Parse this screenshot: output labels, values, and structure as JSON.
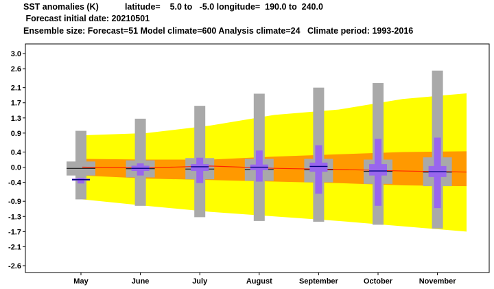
{
  "header": {
    "line1": "SST anomalies (K)           latitude=    5.0 to   -5.0 longitude=  190.0 to  240.0",
    "line2": " Forecast initial date: 20210501",
    "line3": "Ensemble size: Forecast=51 Model climate=600 Analysis climate=24   Climate period: 1993-2016"
  },
  "chart_data": {
    "type": "box",
    "title": "SST anomalies (K)",
    "categories": [
      "May",
      "June",
      "July",
      "August",
      "September",
      "October",
      "November"
    ],
    "y_ticks": [
      "3.0",
      "2.6",
      "2.1",
      "1.7",
      "1.3",
      "0.9",
      "0.4",
      "0.0",
      "-0.4",
      "-0.9",
      "-1.3",
      "-1.7",
      "-2.1",
      "-2.6"
    ],
    "ylim": [
      -2.6,
      3.0
    ],
    "climate_outer": {
      "upper": [
        0.84,
        0.9,
        1.1,
        1.38,
        1.52,
        1.8,
        1.95
      ],
      "lower": [
        -0.85,
        -1.02,
        -1.18,
        -1.3,
        -1.42,
        -1.56,
        -1.7
      ]
    },
    "climate_inner": {
      "upper": [
        0.22,
        0.2,
        0.2,
        0.28,
        0.34,
        0.4,
        0.42
      ],
      "lower": [
        -0.22,
        -0.3,
        -0.34,
        -0.38,
        -0.42,
        -0.48,
        -0.5
      ]
    },
    "climate_median": [
      0.0,
      -0.02,
      0.03,
      -0.03,
      -0.06,
      -0.1,
      -0.13
    ],
    "climate_box": {
      "whisker_low": [
        -0.85,
        -1.02,
        -1.32,
        -1.42,
        -1.44,
        -1.52,
        -1.62
      ],
      "whisker_high": [
        0.96,
        1.28,
        1.62,
        1.94,
        2.1,
        2.22,
        2.55
      ],
      "q1": [
        -0.22,
        -0.27,
        -0.32,
        -0.36,
        -0.4,
        -0.44,
        -0.5
      ],
      "q3": [
        0.15,
        0.18,
        0.24,
        0.22,
        0.22,
        0.2,
        0.26
      ],
      "median": [
        -0.03,
        -0.04,
        -0.05,
        -0.06,
        -0.07,
        -0.11,
        -0.13
      ]
    },
    "forecast_box": {
      "whisker_low": [
        -0.43,
        -0.22,
        -0.42,
        -0.38,
        -0.7,
        -1.02,
        -1.08
      ],
      "whisker_high": [
        -0.28,
        0.1,
        0.25,
        0.44,
        0.58,
        0.75,
        0.78
      ],
      "q1": [
        -0.34,
        -0.1,
        -0.1,
        -0.08,
        -0.12,
        -0.22,
        -0.26
      ],
      "q3": [
        -0.3,
        0.04,
        0.08,
        0.07,
        0.12,
        0.08,
        0.03
      ],
      "median": [
        -0.33,
        -0.03,
        0.01,
        0.0,
        0.02,
        -0.1,
        -0.12
      ]
    },
    "colors": {
      "outer_band": "#ffff00",
      "inner_band": "#ff9900",
      "climate_box": "#a9a9a9",
      "forecast_box": "#9966ee",
      "median_line": "#ff2200",
      "box_median": "#000080"
    },
    "grid": false
  }
}
